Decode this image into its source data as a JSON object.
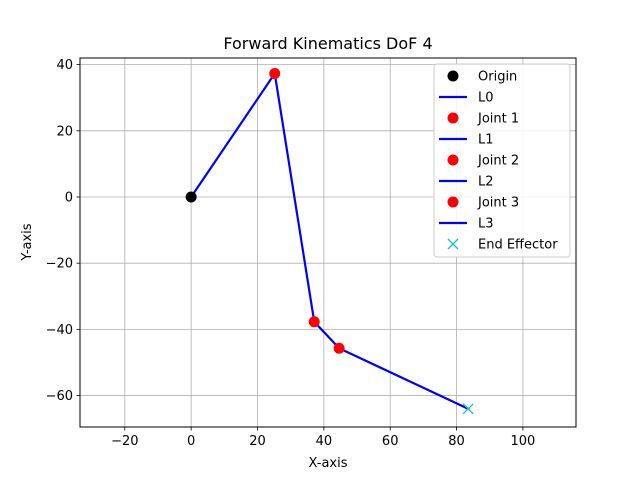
{
  "chart_data": {
    "type": "line",
    "title": "Forward Kinematics DoF 4",
    "xlabel": "X-axis",
    "ylabel": "Y-axis",
    "xlim": [
      -33.5,
      116
    ],
    "ylim": [
      -69.5,
      42
    ],
    "xticks": [
      -20,
      0,
      20,
      40,
      60,
      80,
      100
    ],
    "yticks": [
      -60,
      -40,
      -20,
      0,
      20,
      40
    ],
    "grid": true,
    "legend_position": "top-right",
    "colors": {
      "link": "#0000ff",
      "origin": "#000000",
      "joint": "#ff0000",
      "end_effector": "#17becf"
    },
    "points": {
      "origin": {
        "x": 0,
        "y": 0
      },
      "joint1": {
        "x": 25.2,
        "y": 37.3
      },
      "joint2": {
        "x": 37.1,
        "y": -37.7
      },
      "joint3": {
        "x": 44.6,
        "y": -45.7
      },
      "end_effector": {
        "x": 83.5,
        "y": -64.0
      }
    },
    "links": [
      {
        "name": "L0",
        "from": "origin",
        "to": "joint1"
      },
      {
        "name": "L1",
        "from": "joint1",
        "to": "joint2"
      },
      {
        "name": "L2",
        "from": "joint2",
        "to": "joint3"
      },
      {
        "name": "L3",
        "from": "joint3",
        "to": "end_effector"
      }
    ],
    "legend": [
      {
        "label": "Origin",
        "kind": "marker-circle",
        "color": "#000000"
      },
      {
        "label": "L0",
        "kind": "line",
        "color": "#0000ff"
      },
      {
        "label": "Joint 1",
        "kind": "marker-circle",
        "color": "#ff0000"
      },
      {
        "label": "L1",
        "kind": "line",
        "color": "#0000ff"
      },
      {
        "label": "Joint 2",
        "kind": "marker-circle",
        "color": "#ff0000"
      },
      {
        "label": "L2",
        "kind": "line",
        "color": "#0000ff"
      },
      {
        "label": "Joint 3",
        "kind": "marker-circle",
        "color": "#ff0000"
      },
      {
        "label": "L3",
        "kind": "line",
        "color": "#0000ff"
      },
      {
        "label": "End Effector",
        "kind": "marker-x",
        "color": "#17becf"
      }
    ]
  }
}
